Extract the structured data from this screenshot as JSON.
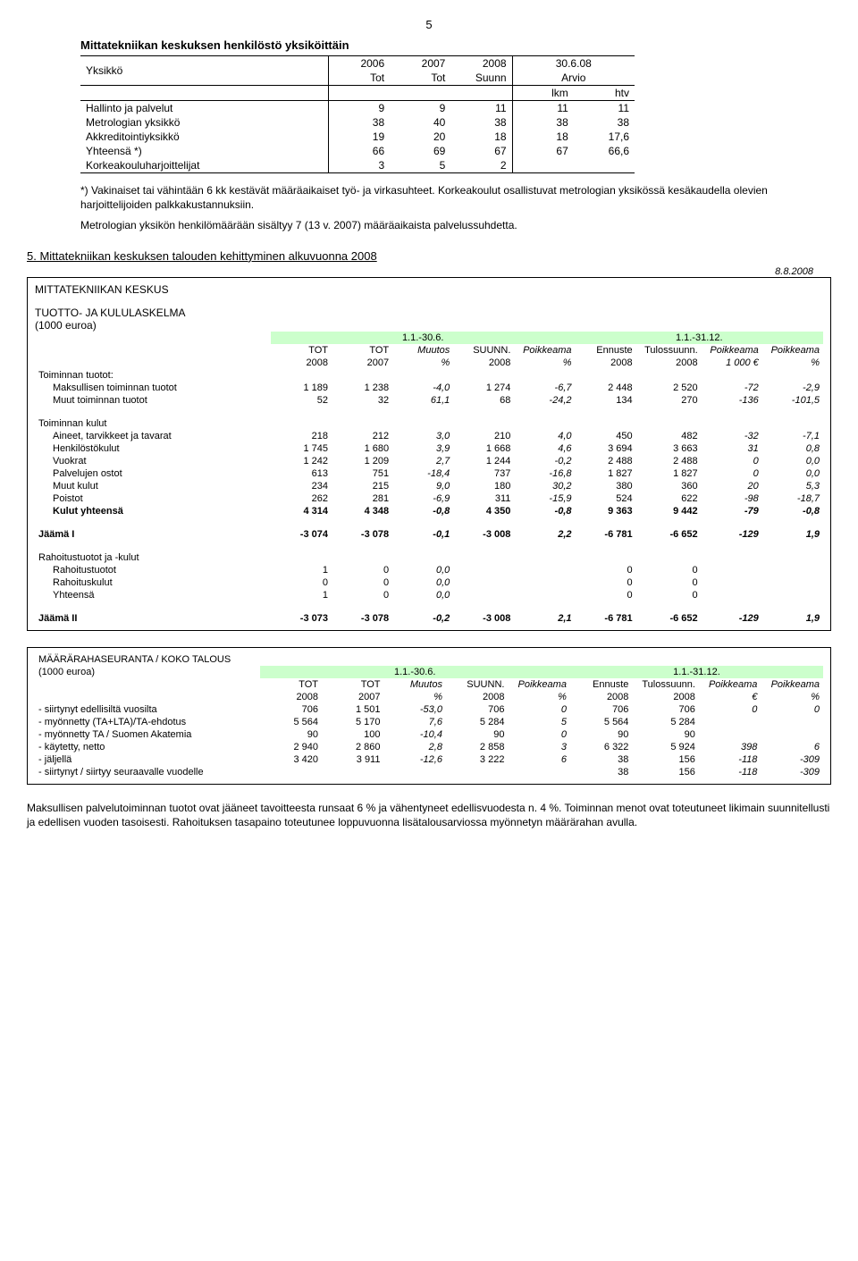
{
  "page_number": "5",
  "personnel": {
    "title": "Mittatekniikan keskuksen henkilöstö yksiköittäin",
    "head": {
      "unit": "Yksikkö",
      "c1a": "2006",
      "c1b": "Tot",
      "c2a": "2007",
      "c2b": "Tot",
      "c3a": "2008",
      "c3b": "Suunn",
      "c4a": "30.6.08",
      "c4b": "Arvio",
      "c5a": "lkm",
      "c5b": "htv"
    },
    "rows": [
      {
        "label": "Hallinto ja palvelut",
        "v": [
          "9",
          "9",
          "11",
          "11",
          "11"
        ]
      },
      {
        "label": "Metrologian yksikkö",
        "v": [
          "38",
          "40",
          "38",
          "38",
          "38"
        ]
      },
      {
        "label": "Akkreditointiyksikkö",
        "v": [
          "19",
          "20",
          "18",
          "18",
          "17,6"
        ]
      },
      {
        "label": "Yhteensä *)",
        "v": [
          "66",
          "69",
          "67",
          "67",
          "66,6"
        ]
      },
      {
        "label": "Korkeakouluharjoittelijat",
        "v": [
          "3",
          "5",
          "2",
          "",
          ""
        ]
      }
    ],
    "footnote": "*) Vakinaiset tai vähintään 6 kk kestävät määräaikaiset työ- ja virkasuhteet. Korkeakoulut osallistuvat metrologian yksikössä kesäkaudella olevien harjoittelijoiden palkkakustannuksiin.",
    "para2": "Metrologian yksikön henkilömäärään sisältyy 7 (13 v. 2007) määräaikaista palvelussuhdetta."
  },
  "section5": {
    "title": "5. Mittatekniikan keskuksen talouden kehittyminen alkuvuonna 2008",
    "date": "8.8.2008",
    "org": "MITTATEKNIIKAN KESKUS",
    "subtitle": "TUOTTO- JA KULULASKELMA",
    "unit": "(1000 euroa)",
    "periods": {
      "p1": "1.1.-30.6.",
      "p2": "1.1.-31.12."
    },
    "headers": {
      "h1a": "TOT",
      "h1b": "2008",
      "h2a": "TOT",
      "h2b": "2007",
      "h3a": "Muutos",
      "h3b": "%",
      "h4a": "SUUNN.",
      "h4b": "2008",
      "h5a": "Poikkeama",
      "h5b": "%",
      "h6a": "Ennuste",
      "h6b": "2008",
      "h7a": "Tulossuunn.",
      "h7b": "2008",
      "h8a": "Poikkeama",
      "h8b": "1 000 €",
      "h9a": "Poikkeama",
      "h9b": "%"
    },
    "groups": [
      {
        "title": "Toiminnan tuotot:",
        "rows": [
          {
            "label": "Maksullisen toiminnan tuotot",
            "v": [
              "1 189",
              "1 238",
              "-4,0",
              "1 274",
              "-6,7",
              "2 448",
              "2 520",
              "-72",
              "-2,9"
            ]
          },
          {
            "label": "Muut toiminnan tuotot",
            "v": [
              "52",
              "32",
              "61,1",
              "68",
              "-24,2",
              "134",
              "270",
              "-136",
              "-101,5"
            ]
          }
        ]
      },
      {
        "title": "Toiminnan kulut",
        "rows": [
          {
            "label": "Aineet, tarvikkeet ja tavarat",
            "v": [
              "218",
              "212",
              "3,0",
              "210",
              "4,0",
              "450",
              "482",
              "-32",
              "-7,1"
            ]
          },
          {
            "label": "Henkilöstökulut",
            "v": [
              "1 745",
              "1 680",
              "3,9",
              "1 668",
              "4,6",
              "3 694",
              "3 663",
              "31",
              "0,8"
            ]
          },
          {
            "label": "Vuokrat",
            "v": [
              "1 242",
              "1 209",
              "2,7",
              "1 244",
              "-0,2",
              "2 488",
              "2 488",
              "0",
              "0,0"
            ]
          },
          {
            "label": "Palvelujen ostot",
            "v": [
              "613",
              "751",
              "-18,4",
              "737",
              "-16,8",
              "1 827",
              "1 827",
              "0",
              "0,0"
            ]
          },
          {
            "label": "Muut kulut",
            "v": [
              "234",
              "215",
              "9,0",
              "180",
              "30,2",
              "380",
              "360",
              "20",
              "5,3"
            ]
          },
          {
            "label": "Poistot",
            "v": [
              "262",
              "281",
              "-6,9",
              "311",
              "-15,9",
              "524",
              "622",
              "-98",
              "-18,7"
            ]
          },
          {
            "label": "Kulut yhteensä",
            "bold": true,
            "v": [
              "4 314",
              "4 348",
              "-0,8",
              "4 350",
              "-0,8",
              "9 363",
              "9 442",
              "-79",
              "-0,8"
            ]
          }
        ]
      }
    ],
    "jaama1": {
      "label": "Jäämä I",
      "v": [
        "-3 074",
        "-3 078",
        "-0,1",
        "-3 008",
        "2,2",
        "-6 781",
        "-6 652",
        "-129",
        "1,9"
      ]
    },
    "rahoitus": {
      "title": "Rahoitustuotot ja -kulut",
      "rows": [
        {
          "label": "Rahoitustuotot",
          "v": [
            "1",
            "0",
            "0,0",
            "",
            "",
            "0",
            "0",
            "",
            ""
          ]
        },
        {
          "label": "Rahoituskulut",
          "v": [
            "0",
            "0",
            "0,0",
            "",
            "",
            "0",
            "0",
            "",
            ""
          ]
        },
        {
          "label": "Yhteensä",
          "v": [
            "1",
            "0",
            "0,0",
            "",
            "",
            "0",
            "0",
            "",
            ""
          ]
        }
      ]
    },
    "jaama2": {
      "label": "Jäämä II",
      "v": [
        "-3 073",
        "-3 078",
        "-0,2",
        "-3 008",
        "2,1",
        "-6 781",
        "-6 652",
        "-129",
        "1,9"
      ]
    }
  },
  "budget": {
    "title": "MÄÄRÄRAHASEURANTA / KOKO TALOUS",
    "unit": "(1000 euroa)",
    "periods": {
      "p1": "1.1.-30.6.",
      "p2": "1.1.-31.12."
    },
    "headers": {
      "h1a": "TOT",
      "h1b": "2008",
      "h2a": "TOT",
      "h2b": "2007",
      "h3a": "Muutos",
      "h3b": "%",
      "h4a": "SUUNN.",
      "h4b": "2008",
      "h5a": "Poikkeama",
      "h5b": "%",
      "h6a": "Ennuste",
      "h6b": "2008",
      "h7a": "Tulossuunn.",
      "h7b": "2008",
      "h8a": "Poikkeama",
      "h8b": "€",
      "h9a": "Poikkeama",
      "h9b": "%"
    },
    "rows": [
      {
        "label": "- siirtynyt edellisiltä vuosilta",
        "v": [
          "706",
          "1 501",
          "-53,0",
          "706",
          "0",
          "706",
          "706",
          "0",
          "0"
        ]
      },
      {
        "label": "- myönnetty (TA+LTA)/TA-ehdotus",
        "v": [
          "5 564",
          "5 170",
          "7,6",
          "5 284",
          "5",
          "5 564",
          "5 284",
          "",
          ""
        ]
      },
      {
        "label": "- myönnetty TA / Suomen Akatemia",
        "v": [
          "90",
          "100",
          "-10,4",
          "90",
          "0",
          "90",
          "90",
          "",
          ""
        ]
      },
      {
        "label": "- käytetty, netto",
        "v": [
          "2 940",
          "2 860",
          "2,8",
          "2 858",
          "3",
          "6 322",
          "5 924",
          "398",
          "6"
        ]
      },
      {
        "label": "- jäljellä",
        "v": [
          "3 420",
          "3 911",
          "-12,6",
          "3 222",
          "6",
          "38",
          "156",
          "-118",
          "-309"
        ]
      },
      {
        "label": "- siirtynyt / siirtyy seuraavalle vuodelle",
        "v": [
          "",
          "",
          "",
          "",
          "",
          "38",
          "156",
          "-118",
          "-309"
        ]
      }
    ]
  },
  "bottom_para": "Maksullisen palvelutoiminnan tuotot ovat jääneet tavoitteesta runsaat 6 % ja vähentyneet edellisvuodesta n. 4 %. Toiminnan menot ovat toteutuneet likimain suunnitellusti ja edellisen vuoden tasoisesti. Rahoituksen tasapaino toteutunee loppuvuonna lisätalousarviossa myönnetyn määrärahan avulla."
}
